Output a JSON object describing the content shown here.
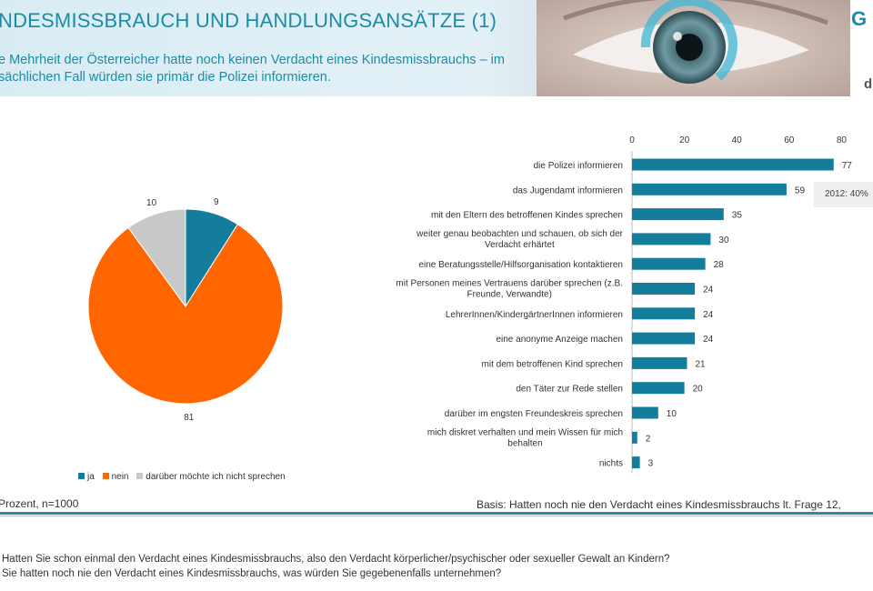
{
  "header": {
    "title": "NDESMISSBRAUCH UND HANDLUNGSANSÄTZE (1)",
    "subtitle_line1": "e Mehrheit der Österreicher hatte noch keinen Verdacht eines Kindesmissbrauchs – im",
    "subtitle_line2": "sächlichen Fall würden sie primär die Polizei informieren.",
    "logo_g": "G",
    "logo_d": "d"
  },
  "colors": {
    "teal": "#137d9b",
    "orange": "#ff6600",
    "gray": "#c8c8c8",
    "title": "#1a8ca8"
  },
  "chart_data": [
    {
      "type": "pie",
      "title": "",
      "slices": [
        {
          "label": "ja",
          "value": 9,
          "color": "#137d9b"
        },
        {
          "label": "nein",
          "value": 81,
          "color": "#ff6600"
        },
        {
          "label": "darüber möchte ich nicht sprechen",
          "value": 10,
          "color": "#c8c8c8"
        }
      ],
      "legend": "bottom"
    },
    {
      "type": "bar",
      "orientation": "horizontal",
      "xlim": [
        0,
        80
      ],
      "ticks": [
        0,
        20,
        40,
        60,
        80
      ],
      "axis_position": "top",
      "categories": [
        [
          "die Polizei informieren"
        ],
        [
          "das Jugendamt informieren"
        ],
        [
          "mit den Eltern des betroffenen Kindes sprechen"
        ],
        [
          "weiter genau beobachten und schauen, ob sich der",
          "Verdacht erhärtet"
        ],
        [
          "eine Beratungsstelle/Hilfsorganisation kontaktieren"
        ],
        [
          "mit Personen meines Vertrauens darüber sprechen (z.B.",
          "Freunde, Verwandte)"
        ],
        [
          "LehrerInnen/KindergärtnerInnen informieren"
        ],
        [
          "eine anonyme Anzeige machen"
        ],
        [
          "mit dem betroffenen Kind sprechen"
        ],
        [
          "den Täter zur Rede stellen"
        ],
        [
          "darüber im engsten Freundeskreis sprechen"
        ],
        [
          "mich diskret verhalten und mein Wissen für mich",
          "behalten"
        ],
        [
          "nichts"
        ]
      ],
      "values": [
        77,
        59,
        35,
        30,
        28,
        24,
        24,
        24,
        21,
        20,
        10,
        2,
        3
      ],
      "color": "#137d9b",
      "annotation": "2012: 40%"
    }
  ],
  "footer": {
    "left": "Prozent, n=1000",
    "right": "Basis: Hatten noch nie den Verdacht eines Kindesmissbrauchs lt. Frage 12,",
    "question1": "Hatten Sie schon einmal den Verdacht eines Kindesmissbrauchs, also den Verdacht körperlicher/psychischer oder sexueller Gewalt an Kindern?",
    "question2": "Sie hatten noch nie den Verdacht eines Kindesmissbrauchs, was würden Sie gegebenenfalls unternehmen?"
  }
}
